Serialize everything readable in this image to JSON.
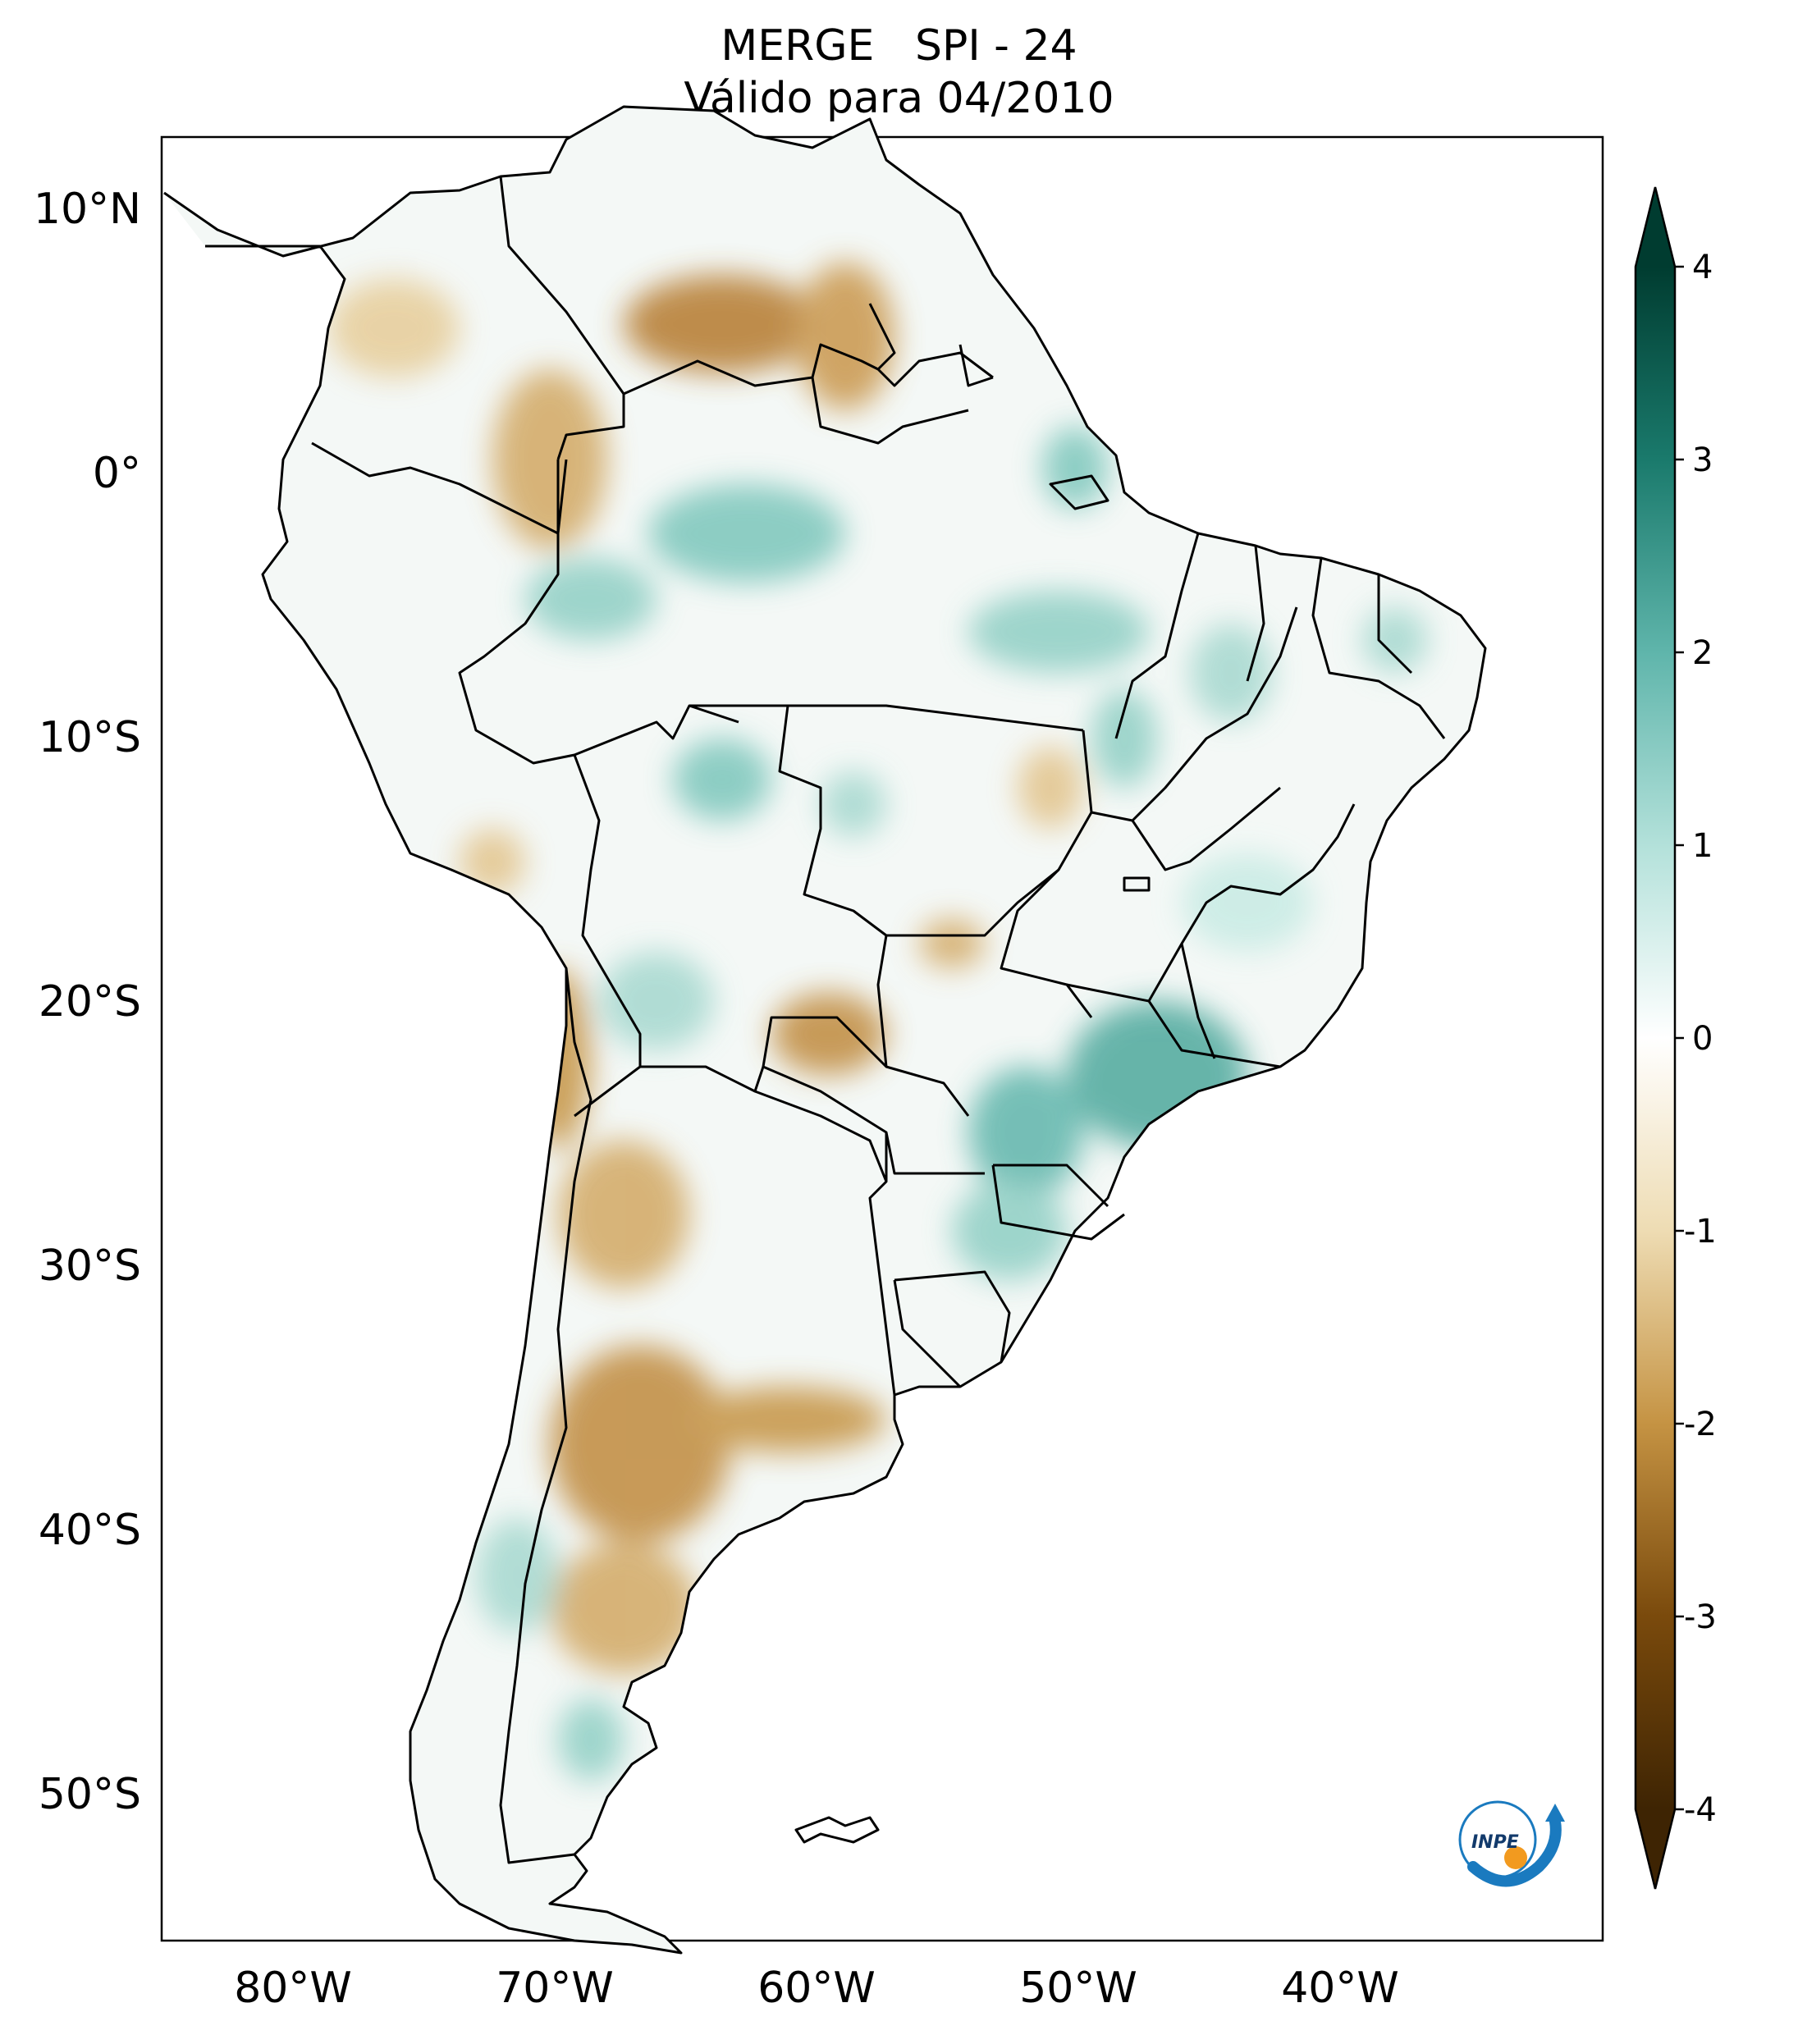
{
  "title": {
    "line1": "MERGE   SPI - 24",
    "line2": "Válido para 04/2010"
  },
  "map": {
    "lon_range": [
      -85,
      -30
    ],
    "lat_range": [
      -56,
      13
    ],
    "lat_ticks": [
      {
        "value": 10,
        "label": "10°N"
      },
      {
        "value": 0,
        "label": "0°"
      },
      {
        "value": -10,
        "label": "10°S"
      },
      {
        "value": -20,
        "label": "20°S"
      },
      {
        "value": -30,
        "label": "30°S"
      },
      {
        "value": -40,
        "label": "40°S"
      },
      {
        "value": -50,
        "label": "50°S"
      }
    ],
    "lon_ticks": [
      {
        "value": -80,
        "label": "80°W"
      },
      {
        "value": -70,
        "label": "70°W"
      },
      {
        "value": -60,
        "label": "60°W"
      },
      {
        "value": -50,
        "label": "50°W"
      },
      {
        "value": -40,
        "label": "40°W"
      }
    ]
  },
  "colorbar": {
    "min": -4,
    "max": 4,
    "extend": "both",
    "colors": {
      "-4": "#3e2403",
      "-3": "#7a4a0c",
      "-2": "#c59343",
      "-1": "#eedcb3",
      "0": "#ffffff",
      "1": "#b3e1da",
      "2": "#5fb5ab",
      "3": "#1a7a6c",
      "4": "#003c30"
    },
    "ticks": [
      {
        "value": 4,
        "label": "4"
      },
      {
        "value": 3,
        "label": "3"
      },
      {
        "value": 2,
        "label": "2"
      },
      {
        "value": 1,
        "label": "1"
      },
      {
        "value": 0,
        "label": "0"
      },
      {
        "value": -1,
        "label": "-1"
      },
      {
        "value": -2,
        "label": "-2"
      },
      {
        "value": -3,
        "label": "-3"
      },
      {
        "value": -4,
        "label": "-4"
      }
    ]
  },
  "logo": {
    "text": "INPE",
    "ring_color": "#1a7abf",
    "dot_color": "#f29a1f"
  }
}
